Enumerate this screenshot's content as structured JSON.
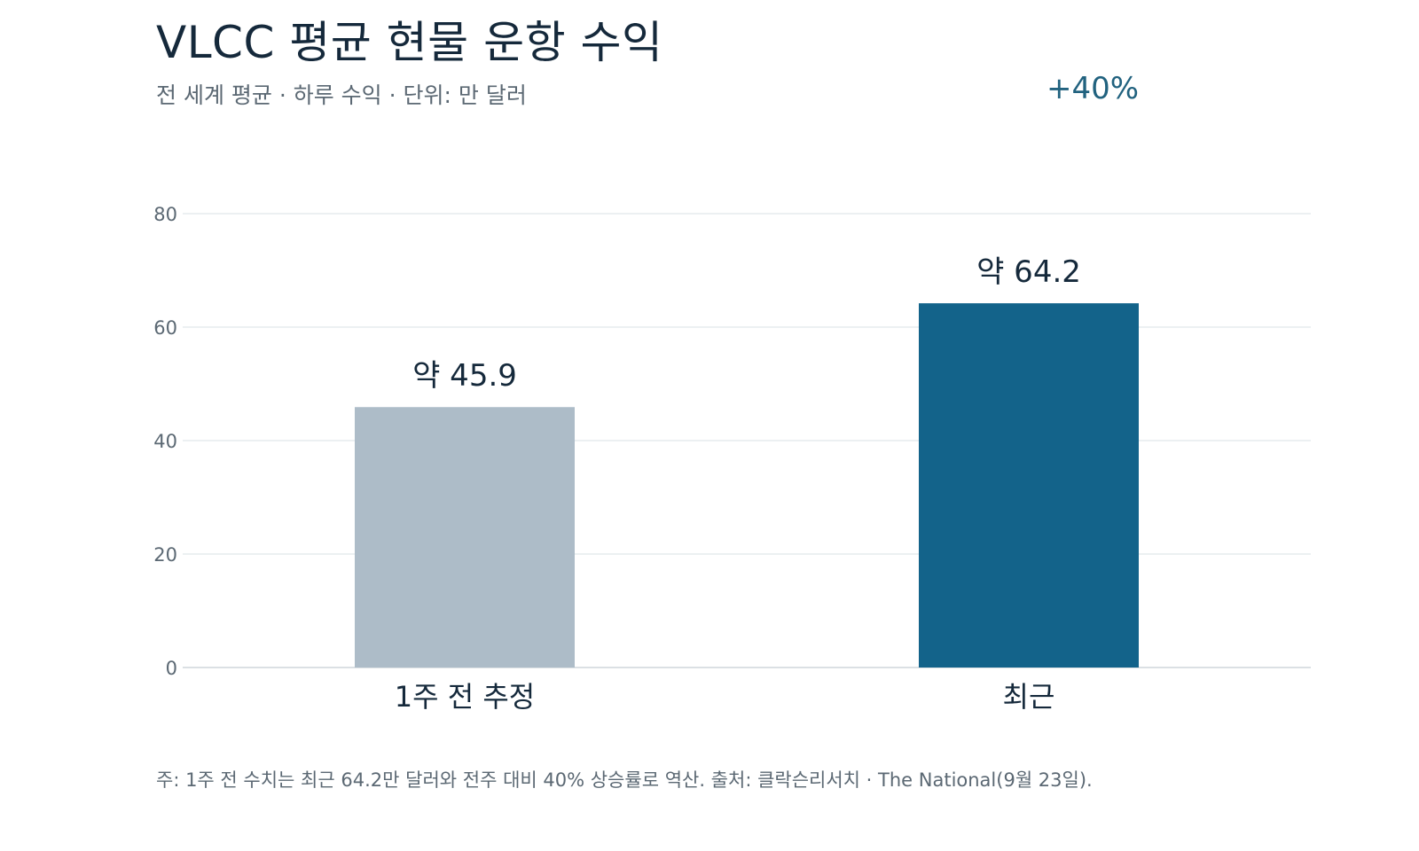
{
  "header": {
    "title": "VLCC 평균 현물 운항 수익",
    "subtitle": "전 세계 평균 · 하루 수익 · 단위: 만 달러",
    "change": "+40%"
  },
  "footer": {
    "note": "주: 1주 전 수치는 최근 64.2만 달러와 전주 대비 40% 상승률로 역산. 출처: 클락슨리서치 · The National(9월 23일)."
  },
  "chart_data": {
    "type": "bar",
    "title": "VLCC 평균 현물 운항 수익",
    "subtitle": "전 세계 평균 · 하루 수익 · 단위: 만 달러",
    "xlabel": "",
    "ylabel": "",
    "categories": [
      "1주 전 추정",
      "최근"
    ],
    "values": [
      45.9,
      64.2
    ],
    "data_labels": [
      "약 45.9",
      "약 64.2"
    ],
    "colors": [
      "#adbcc8",
      "#13638a"
    ],
    "ylim": [
      0,
      80
    ],
    "yticks": [
      0,
      20,
      40,
      60,
      80
    ],
    "grid": true,
    "annotation": "+40%"
  }
}
